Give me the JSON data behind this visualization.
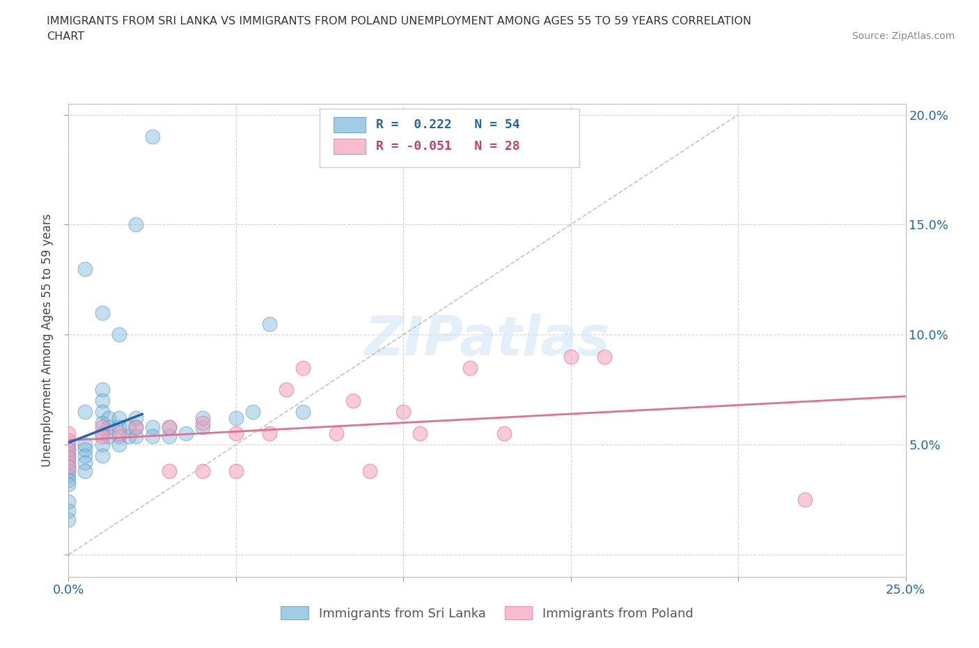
{
  "title_line1": "IMMIGRANTS FROM SRI LANKA VS IMMIGRANTS FROM POLAND UNEMPLOYMENT AMONG AGES 55 TO 59 YEARS CORRELATION",
  "title_line2": "CHART",
  "source_text": "Source: ZipAtlas.com",
  "ylabel": "Unemployment Among Ages 55 to 59 years",
  "xlim": [
    0.0,
    0.25
  ],
  "ylim": [
    -0.01,
    0.205
  ],
  "yticks": [
    0.0,
    0.05,
    0.1,
    0.15,
    0.2
  ],
  "xticks": [
    0.0,
    0.05,
    0.1,
    0.15,
    0.2,
    0.25
  ],
  "xtick_labels_show": [
    "0.0%",
    "",
    "",
    "",
    "",
    "25.0%"
  ],
  "ytick_labels_show": [
    "",
    "5.0%",
    "10.0%",
    "15.0%",
    "20.0%"
  ],
  "sri_lanka_color": "#7ab8d9",
  "poland_color": "#f5a0b8",
  "sri_lanka_line_color": "#2166ac",
  "poland_line_color": "#e07090",
  "diag_color": "#b0c4de",
  "sri_lanka_r": 0.222,
  "sri_lanka_n": 54,
  "poland_r": -0.051,
  "poland_n": 28,
  "sri_lanka_x": [
    0.0,
    0.0,
    0.0,
    0.0,
    0.0,
    0.0,
    0.0,
    0.0,
    0.0,
    0.0,
    0.005,
    0.005,
    0.005,
    0.005,
    0.005,
    0.01,
    0.01,
    0.01,
    0.01,
    0.01,
    0.01,
    0.01,
    0.012,
    0.012,
    0.012,
    0.015,
    0.015,
    0.015,
    0.015,
    0.018,
    0.018,
    0.02,
    0.02,
    0.02,
    0.025,
    0.025,
    0.03,
    0.03,
    0.035,
    0.04,
    0.04,
    0.05,
    0.055,
    0.06,
    0.07,
    0.01,
    0.015,
    0.02,
    0.025,
    0.005,
    0.005,
    0.0,
    0.0,
    0.0
  ],
  "sri_lanka_y": [
    0.05,
    0.048,
    0.046,
    0.044,
    0.042,
    0.04,
    0.038,
    0.036,
    0.034,
    0.032,
    0.05,
    0.048,
    0.045,
    0.042,
    0.038,
    0.075,
    0.07,
    0.065,
    0.06,
    0.055,
    0.05,
    0.045,
    0.062,
    0.058,
    0.054,
    0.062,
    0.058,
    0.054,
    0.05,
    0.058,
    0.054,
    0.062,
    0.058,
    0.054,
    0.058,
    0.054,
    0.058,
    0.054,
    0.055,
    0.062,
    0.058,
    0.062,
    0.065,
    0.105,
    0.065,
    0.11,
    0.1,
    0.15,
    0.19,
    0.13,
    0.065,
    0.024,
    0.02,
    0.016
  ],
  "poland_x": [
    0.0,
    0.0,
    0.0,
    0.0,
    0.0,
    0.01,
    0.01,
    0.015,
    0.02,
    0.03,
    0.03,
    0.04,
    0.04,
    0.05,
    0.05,
    0.06,
    0.065,
    0.07,
    0.08,
    0.085,
    0.09,
    0.1,
    0.105,
    0.12,
    0.13,
    0.15,
    0.16,
    0.22
  ],
  "poland_y": [
    0.055,
    0.052,
    0.048,
    0.044,
    0.04,
    0.058,
    0.054,
    0.055,
    0.058,
    0.058,
    0.038,
    0.06,
    0.038,
    0.055,
    0.038,
    0.055,
    0.075,
    0.085,
    0.055,
    0.07,
    0.038,
    0.065,
    0.055,
    0.085,
    0.055,
    0.09,
    0.09,
    0.025
  ]
}
